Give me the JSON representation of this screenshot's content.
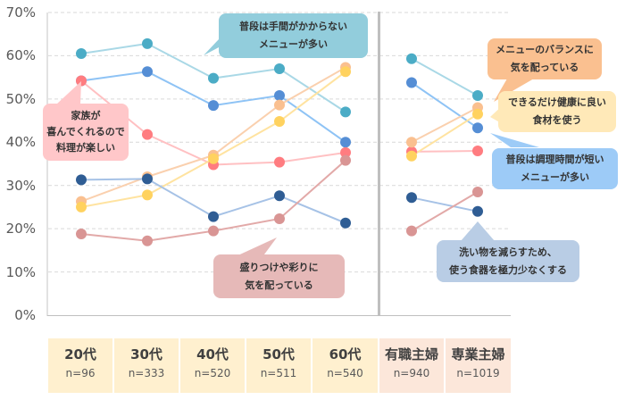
{
  "chart_data": {
    "type": "line",
    "title": "",
    "xlabel": "",
    "ylabel": "",
    "ylim": [
      0,
      70
    ],
    "yticks": [
      "70%",
      "60%",
      "50%",
      "40%",
      "30%",
      "20%",
      "10%",
      "0%"
    ],
    "grid": true,
    "groups": [
      {
        "name": "age",
        "categories": [
          "20代",
          "30代",
          "40代",
          "50代",
          "60代"
        ]
      },
      {
        "name": "homemaker",
        "categories": [
          "有職主婦",
          "専業主婦"
        ]
      }
    ],
    "categories": [
      {
        "label": "20代",
        "n": "n=96"
      },
      {
        "label": "30代",
        "n": "n=333"
      },
      {
        "label": "40代",
        "n": "n=520"
      },
      {
        "label": "50代",
        "n": "n=511"
      },
      {
        "label": "60代",
        "n": "n=540"
      },
      {
        "label": "有職主婦",
        "n": "n=940"
      },
      {
        "label": "専業主婦",
        "n": "n=1019"
      }
    ],
    "series": [
      {
        "name": "普段は手間がかからないメニューが多い",
        "color": "#4BACC6",
        "line": "#A9D8E6",
        "values": [
          60.5,
          62.8,
          54.8,
          57.0,
          47.0,
          59.3,
          50.8
        ]
      },
      {
        "name": "普段は調理時間が短いメニューが多い",
        "color": "#558ED5",
        "line": "#8EC3F5",
        "values": [
          54.2,
          56.3,
          48.5,
          50.8,
          40.0,
          53.8,
          43.3
        ]
      },
      {
        "name": "家族が喜んでくれるので料理が楽しい",
        "color": "#FF7C80",
        "line": "#FFC0C2",
        "values": [
          54.2,
          41.8,
          34.8,
          35.4,
          37.6,
          37.8,
          38.0
        ]
      },
      {
        "name": "メニューのバランスに気を配っている",
        "color": "#FAC090",
        "line": "#FAD0AE",
        "values": [
          26.3,
          32.0,
          37.0,
          48.6,
          57.3,
          40.0,
          48.0
        ]
      },
      {
        "name": "できるだけ健康に良い食材を使う",
        "color": "#FFD25F",
        "line": "#FFE3A0",
        "values": [
          25.0,
          27.8,
          36.2,
          44.8,
          56.3,
          36.8,
          46.5
        ]
      },
      {
        "name": "洗い物を減らすため、使う食器を極力少なくする",
        "color": "#2F5D94",
        "line": "#A6C2E6",
        "values": [
          31.3,
          31.5,
          22.8,
          27.6,
          21.3,
          27.2,
          24.0
        ]
      },
      {
        "name": "盛りつけや彩りに気を配っている",
        "color": "#D99594",
        "line": "#E2A9A8",
        "values": [
          18.8,
          17.2,
          19.5,
          22.3,
          35.8,
          19.5,
          28.5
        ]
      }
    ],
    "annotations": [
      {
        "lines": [
          "普段は手間がかからない",
          "メニューが多い"
        ],
        "bg": "#92CDDC"
      },
      {
        "lines": [
          "家族が",
          "喜んでくれるので",
          "料理が楽しい"
        ],
        "bg": "#FFC7C9"
      },
      {
        "lines": [
          "盛りつけや彩りに",
          "気を配っている"
        ],
        "bg": "#E6B9B8"
      },
      {
        "lines": [
          "メニューのバランスに",
          "気を配っている"
        ],
        "bg": "#FAC090"
      },
      {
        "lines": [
          "できるだけ健康に良い",
          "食材を使う"
        ],
        "bg": "#FFE9B8"
      },
      {
        "lines": [
          "普段は調理時間が短い",
          "メニューが多い"
        ],
        "bg": "#9DCBF7"
      },
      {
        "lines": [
          "洗い物を減らすため、",
          "使う食器を極力少なくする"
        ],
        "bg": "#B9CDE5"
      }
    ]
  },
  "axis": {
    "y_labels": [
      "70%",
      "60%",
      "50%",
      "40%",
      "30%",
      "20%",
      "10%",
      "0%"
    ]
  },
  "callouts": {
    "tema": {
      "l1": "普段は手間がかからない",
      "l2": "メニューが多い"
    },
    "kazoku": {
      "l1": "家族が",
      "l2": "喜んでくれるので",
      "l3": "料理が楽しい"
    },
    "moritsuke": {
      "l1": "盛りつけや彩りに",
      "l2": "気を配っている"
    },
    "balance": {
      "l1": "メニューのバランスに",
      "l2": "気を配っている"
    },
    "kenko": {
      "l1": "できるだけ健康に良い",
      "l2": "食材を使う"
    },
    "jikan": {
      "l1": "普段は調理時間が短い",
      "l2": "メニューが多い"
    },
    "araimono": {
      "l1": "洗い物を減らすため、",
      "l2": "使う食器を極力少なくする"
    }
  },
  "category_boxes": [
    {
      "label": "20代",
      "n": "n=96"
    },
    {
      "label": "30代",
      "n": "n=333"
    },
    {
      "label": "40代",
      "n": "n=520"
    },
    {
      "label": "50代",
      "n": "n=511"
    },
    {
      "label": "60代",
      "n": "n=540"
    },
    {
      "label": "有職主婦",
      "n": "n=940"
    },
    {
      "label": "専業主婦",
      "n": "n=1019"
    }
  ]
}
